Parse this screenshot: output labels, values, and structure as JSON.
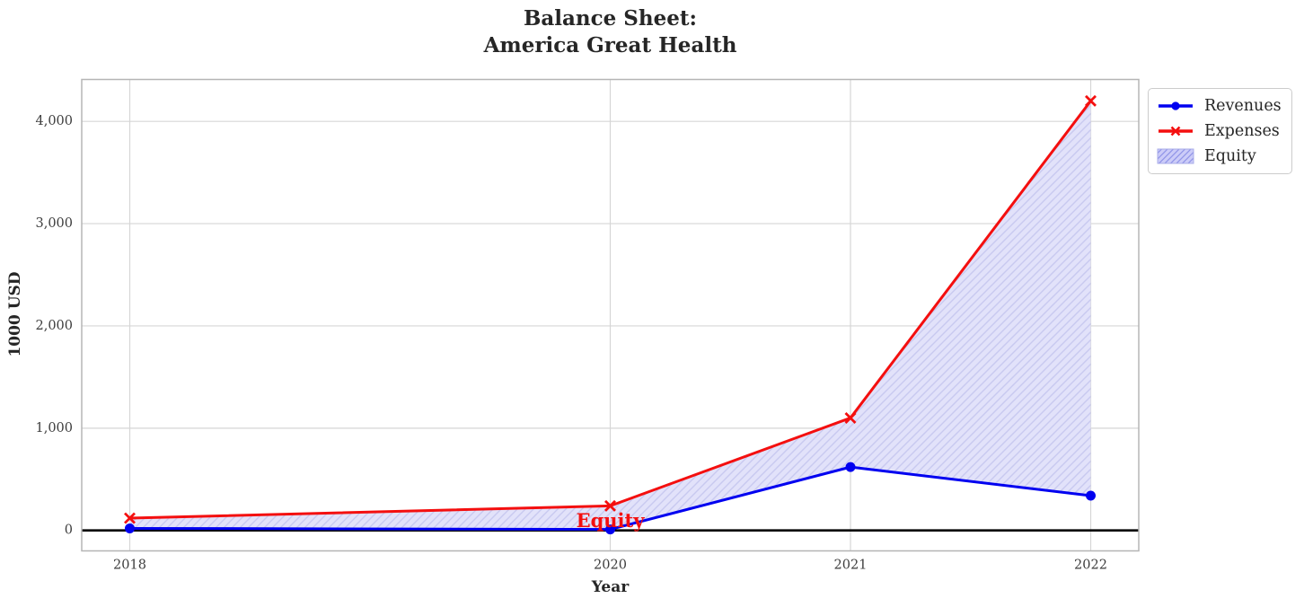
{
  "chart_data": {
    "type": "line",
    "title": "Balance Sheet:\nAmerica Great Health",
    "xlabel": "Year",
    "ylabel": "1000 USD",
    "x": [
      2018,
      2020,
      2021,
      2022
    ],
    "series": [
      {
        "name": "Revenues",
        "color": "#0000f0",
        "marker": "circle",
        "values": [
          20,
          10,
          620,
          340
        ]
      },
      {
        "name": "Expenses",
        "color": "#f40f0f",
        "marker": "x",
        "values": [
          120,
          240,
          1100,
          4200
        ]
      }
    ],
    "fill_between": {
      "name": "Equity",
      "from_series": "Revenues",
      "to_series": "Expenses",
      "fill_color": "#e2e2fa",
      "hatch": "/",
      "hatch_color": "#c8c9f0",
      "legend_fill_color": "#ccccf8",
      "legend_hatch_color": "#9296e8",
      "legend_edge_color": "#a9ace9"
    },
    "annotation": {
      "text": "Equity",
      "x": 2020,
      "y": 100,
      "color": "#f40f0f"
    },
    "x_ticks": [
      {
        "value": 2018,
        "label": "2018"
      },
      {
        "value": 2020,
        "label": "2020"
      },
      {
        "value": 2021,
        "label": "2021"
      },
      {
        "value": 2022,
        "label": "2022"
      }
    ],
    "y_ticks": [
      {
        "value": 0,
        "label": "0"
      },
      {
        "value": 1000,
        "label": "1,000"
      },
      {
        "value": 2000,
        "label": "2,000"
      },
      {
        "value": 3000,
        "label": "3,000"
      },
      {
        "value": 4000,
        "label": "4,000"
      }
    ],
    "xlim": [
      2017.8,
      2022.2
    ],
    "ylim": [
      -200,
      4410
    ],
    "grid": true,
    "zero_line": true,
    "legend": {
      "position": "outside upper right",
      "entries": [
        "Revenues",
        "Expenses",
        "Equity"
      ]
    },
    "colors": {
      "grid": "#d6d6d6",
      "spine": "#b5b5b5",
      "zero_line": "#000000",
      "tick_text": "#3d3d3d",
      "title_text": "#262626"
    }
  }
}
